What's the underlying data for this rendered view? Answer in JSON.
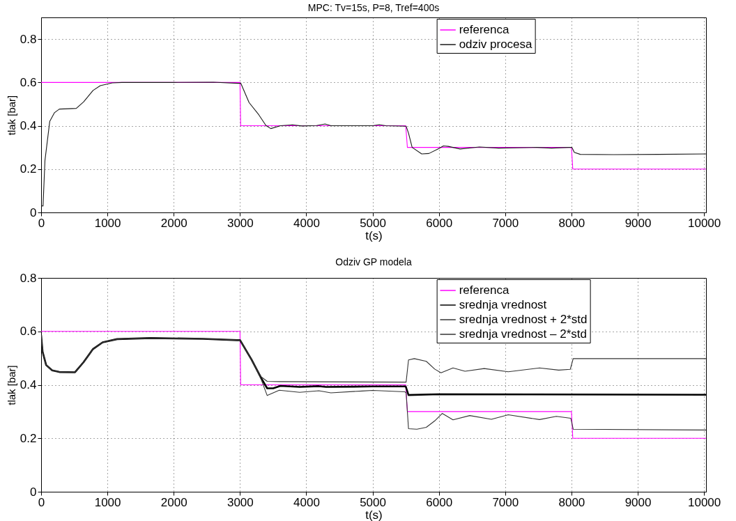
{
  "chart_data": [
    {
      "type": "line",
      "title": "MPC: Tv=15s, P=8, Tref=400s",
      "xlabel": "t(s)",
      "ylabel": "tlak [bar]",
      "xlim": [
        0,
        10030
      ],
      "ylim": [
        0,
        0.9
      ],
      "xticks": [
        0,
        1000,
        2000,
        3000,
        4000,
        5000,
        6000,
        7000,
        8000,
        9000,
        10000
      ],
      "yticks": [
        0,
        0.2,
        0.4,
        0.6,
        0.8
      ],
      "grid": true,
      "legend": "top",
      "line_style": "solid",
      "marker": "none",
      "series": [
        {
          "name": "referenca",
          "color": "#ff00ff",
          "x": [
            0,
            3000,
            3010,
            5500,
            5525,
            8000,
            8020,
            10030
          ],
          "values": [
            0.6,
            0.6,
            0.4,
            0.4,
            0.3,
            0.3,
            0.2,
            0.2
          ]
        },
        {
          "name": "odziv procesa",
          "color": "#1a1a1a",
          "x": [
            0,
            29,
            58,
            130,
            200,
            275,
            530,
            640,
            783,
            892,
            1073,
            1218,
            2000,
            2600,
            2975,
            3012,
            3137,
            3283,
            3392,
            3465,
            3610,
            3792,
            3937,
            4155,
            4283,
            4373,
            5000,
            5100,
            5200,
            5506,
            5542,
            5597,
            5741,
            5850,
            5995,
            6068,
            6140,
            6321,
            6611,
            6901,
            7482,
            7700,
            7953,
            8007,
            8043,
            8133,
            8638,
            9312,
            10030
          ],
          "values": [
            0.03,
            0.03,
            0.24,
            0.42,
            0.46,
            0.477,
            0.48,
            0.51,
            0.563,
            0.585,
            0.598,
            0.6,
            0.6,
            0.601,
            0.596,
            0.596,
            0.507,
            0.451,
            0.401,
            0.387,
            0.4,
            0.404,
            0.399,
            0.401,
            0.408,
            0.4,
            0.4,
            0.405,
            0.4,
            0.398,
            0.366,
            0.3,
            0.27,
            0.272,
            0.294,
            0.307,
            0.305,
            0.293,
            0.302,
            0.297,
            0.3,
            0.297,
            0.3,
            0.3,
            0.277,
            0.268,
            0.267,
            0.268,
            0.27
          ]
        }
      ]
    },
    {
      "type": "line",
      "title": "Odziv GP modela",
      "xlabel": "t(s)",
      "ylabel": "tlak [bar]",
      "xlim": [
        0,
        10030
      ],
      "ylim": [
        0,
        0.8
      ],
      "xticks": [
        0,
        1000,
        2000,
        3000,
        4000,
        5000,
        6000,
        7000,
        8000,
        9000,
        10000
      ],
      "yticks": [
        0,
        0.2,
        0.4,
        0.6,
        0.8
      ],
      "grid": true,
      "legend": "top",
      "line_style": "solid",
      "marker": "none",
      "series": [
        {
          "name": "referenca",
          "color": "#ff00ff",
          "x": [
            0,
            3000,
            3010,
            5500,
            5525,
            8000,
            8020,
            10030
          ],
          "values": [
            0.6,
            0.6,
            0.4,
            0.4,
            0.3,
            0.3,
            0.2,
            0.2
          ]
        },
        {
          "name": "srednja vrednost",
          "color": "#000000",
          "x": [
            0,
            22,
            76,
            167,
            275,
            511,
            638,
            783,
            928,
            1145,
            1653,
            2450,
            2957,
            3001,
            3175,
            3320,
            3410,
            3501,
            3610,
            3900,
            4190,
            4298,
            5000,
            5500,
            5542,
            6000,
            10030
          ],
          "values": [
            0.585,
            0.524,
            0.474,
            0.454,
            0.448,
            0.447,
            0.484,
            0.534,
            0.559,
            0.571,
            0.575,
            0.572,
            0.567,
            0.567,
            0.494,
            0.425,
            0.387,
            0.387,
            0.396,
            0.392,
            0.395,
            0.392,
            0.394,
            0.394,
            0.362,
            0.365,
            0.363
          ]
        },
        {
          "name": "srednja vrednost + 2*std",
          "color": "#333333",
          "x": [
            0,
            22,
            76,
            167,
            275,
            511,
            638,
            783,
            928,
            1145,
            1653,
            2450,
            2957,
            3001,
            3175,
            3320,
            3410,
            3600,
            5506,
            5542,
            5629,
            5810,
            5937,
            6032,
            6213,
            6394,
            6684,
            7047,
            7518,
            7808,
            7982,
            8026,
            10030
          ],
          "values": [
            0.585,
            0.524,
            0.474,
            0.454,
            0.448,
            0.447,
            0.484,
            0.534,
            0.559,
            0.571,
            0.575,
            0.572,
            0.567,
            0.567,
            0.494,
            0.43,
            0.413,
            0.412,
            0.41,
            0.493,
            0.498,
            0.488,
            0.459,
            0.445,
            0.463,
            0.451,
            0.461,
            0.449,
            0.463,
            0.455,
            0.458,
            0.498,
            0.498
          ]
        },
        {
          "name": "srednja vrednost – 2*std",
          "color": "#333333",
          "x": [
            0,
            22,
            76,
            167,
            275,
            511,
            638,
            783,
            928,
            1145,
            1653,
            2450,
            2957,
            3001,
            3175,
            3320,
            3410,
            3501,
            3592,
            3900,
            4190,
            4371,
            4842,
            5000,
            5488,
            5506,
            5542,
            5668,
            5810,
            5937,
            6050,
            6213,
            6466,
            6792,
            7047,
            7518,
            7772,
            7990,
            8026,
            10030
          ],
          "values": [
            0.585,
            0.524,
            0.474,
            0.454,
            0.448,
            0.447,
            0.484,
            0.534,
            0.559,
            0.571,
            0.575,
            0.572,
            0.567,
            0.567,
            0.494,
            0.42,
            0.36,
            0.37,
            0.38,
            0.372,
            0.378,
            0.37,
            0.377,
            0.379,
            0.374,
            0.37,
            0.236,
            0.234,
            0.241,
            0.265,
            0.293,
            0.269,
            0.285,
            0.271,
            0.288,
            0.27,
            0.282,
            0.275,
            0.234,
            0.231
          ]
        }
      ]
    }
  ]
}
